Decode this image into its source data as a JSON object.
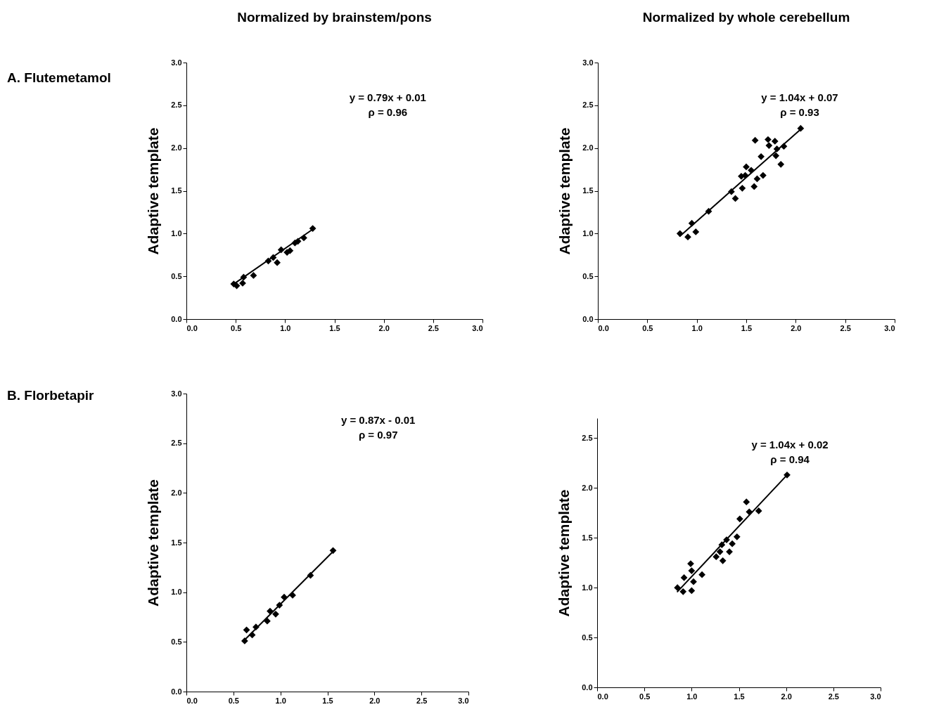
{
  "chart_data": [
    {
      "type": "scatter",
      "title": "Normalized by brainstem/pons",
      "subtitle": "A.  Flutemetamol",
      "ylabel": "Adaptive template",
      "annotations": [
        "y = 0.79x + 0.01",
        "ρ = 0.96"
      ],
      "xlim": [
        0,
        3
      ],
      "ylim": [
        0,
        3
      ],
      "xticks": [
        {
          "value": 0,
          "label": "0.0"
        },
        0.5,
        {
          "value": 1,
          "label": "1.0"
        },
        1.5,
        {
          "value": 2,
          "label": "2.0"
        },
        2.5,
        {
          "value": 3,
          "label": "3.0"
        }
      ],
      "yticks": [
        {
          "value": 0,
          "label": "0.0"
        },
        0.5,
        {
          "value": 1,
          "label": "1.0"
        },
        1.5,
        {
          "value": 2,
          "label": "2.0"
        },
        2.5,
        {
          "value": 3,
          "label": "3.0"
        }
      ],
      "series": [
        {
          "marker": "diamond",
          "color": "#000000",
          "x": [
            0.48,
            0.51,
            0.57,
            0.58,
            0.68,
            0.83,
            0.88,
            0.92,
            0.96,
            1.02,
            1.05,
            1.1,
            1.13,
            1.19,
            1.28
          ],
          "values": [
            0.41,
            0.39,
            0.42,
            0.49,
            0.51,
            0.68,
            0.72,
            0.66,
            0.81,
            0.78,
            0.8,
            0.89,
            0.91,
            0.95,
            1.06
          ]
        },
        {
          "type": "line",
          "color": "#000000",
          "line_style": "solid",
          "x": [
            0.48,
            1.28
          ],
          "values": [
            0.41,
            1.05
          ]
        }
      ]
    },
    {
      "type": "scatter",
      "title": "Normalized by whole cerebellum",
      "ylabel": "Adaptive template",
      "annotations": [
        "y = 1.04x + 0.07",
        "ρ = 0.93"
      ],
      "xlim": [
        0,
        3
      ],
      "ylim": [
        0,
        3
      ],
      "xticks": [
        {
          "value": 0,
          "label": "0.0"
        },
        0.5,
        {
          "value": 1,
          "label": "1.0"
        },
        1.5,
        {
          "value": 2,
          "label": "2.0"
        },
        2.5,
        {
          "value": 3,
          "label": "3.0"
        }
      ],
      "yticks": [
        {
          "value": 0,
          "label": "0.0"
        },
        0.5,
        {
          "value": 1,
          "label": "1.0"
        },
        1.5,
        {
          "value": 2,
          "label": "2.0"
        },
        2.5,
        {
          "value": 3,
          "label": "3.0"
        }
      ],
      "series": [
        {
          "marker": "diamond",
          "color": "#000000",
          "x": [
            0.83,
            0.91,
            0.99,
            0.95,
            1.12,
            1.35,
            1.39,
            1.46,
            1.5,
            1.45,
            1.49,
            1.55,
            1.58,
            1.61,
            1.67,
            1.65,
            1.59,
            1.72,
            1.73,
            1.79,
            1.8,
            1.81,
            1.85,
            1.88,
            2.05
          ],
          "values": [
            1.0,
            0.96,
            1.02,
            1.12,
            1.26,
            1.49,
            1.41,
            1.53,
            1.78,
            1.67,
            1.68,
            1.74,
            1.55,
            1.64,
            1.68,
            1.9,
            2.09,
            2.1,
            2.03,
            2.08,
            1.91,
            1.99,
            1.81,
            2.02,
            2.23
          ]
        },
        {
          "type": "line",
          "color": "#000000",
          "line_style": "solid",
          "x": [
            0.83,
            2.05
          ],
          "values": [
            0.97,
            2.22
          ]
        }
      ]
    },
    {
      "type": "scatter",
      "subtitle": "B.  Florbetapir",
      "ylabel": "Adaptive template",
      "annotations": [
        "y = 0.87x - 0.01",
        "ρ = 0.97"
      ],
      "xlim": [
        0,
        3
      ],
      "ylim": [
        0,
        3
      ],
      "xticks": [
        {
          "value": 0,
          "label": "0.0"
        },
        0.5,
        {
          "value": 1,
          "label": "1.0"
        },
        1.5,
        {
          "value": 2,
          "label": "2.0"
        },
        2.5,
        {
          "value": 3,
          "label": "3.0"
        }
      ],
      "yticks": [
        {
          "value": 0,
          "label": "0.0"
        },
        0.5,
        {
          "value": 1,
          "label": "1.0"
        },
        1.5,
        {
          "value": 2,
          "label": "2.0"
        },
        2.5,
        {
          "value": 3,
          "label": "3.0"
        }
      ],
      "series": [
        {
          "marker": "diamond",
          "color": "#000000",
          "x": [
            0.62,
            0.7,
            0.64,
            0.74,
            0.86,
            0.89,
            0.95,
            0.99,
            1.04,
            1.13,
            1.32,
            1.56
          ],
          "values": [
            0.51,
            0.57,
            0.62,
            0.65,
            0.71,
            0.81,
            0.78,
            0.87,
            0.95,
            0.97,
            1.17,
            1.42
          ]
        },
        {
          "type": "line",
          "color": "#000000",
          "line_style": "solid",
          "x": [
            0.62,
            1.56
          ],
          "values": [
            0.52,
            1.41
          ]
        }
      ]
    },
    {
      "type": "scatter",
      "ylabel": "Adaptive template",
      "annotations": [
        "y = 1.04x + 0.02",
        "ρ = 0.94"
      ],
      "xlim": [
        0,
        3
      ],
      "ylim": [
        0,
        2.7
      ],
      "xticks": [
        {
          "value": 0,
          "label": "0.0"
        },
        0.5,
        {
          "value": 1,
          "label": "1.0"
        },
        1.5,
        {
          "value": 2,
          "label": "2.0"
        },
        2.5,
        {
          "value": 3,
          "label": "3.0"
        }
      ],
      "yticks": [
        {
          "value": 0,
          "label": "0.0"
        },
        0.5,
        {
          "value": 1,
          "label": "1.0"
        },
        1.5,
        {
          "value": 2,
          "label": "2.0"
        },
        2.5
      ],
      "series": [
        {
          "marker": "diamond",
          "color": "#000000",
          "x": [
            0.85,
            0.91,
            0.92,
            1.0,
            1.02,
            1.0,
            0.99,
            1.11,
            1.26,
            1.33,
            1.3,
            1.32,
            1.37,
            1.4,
            1.43,
            1.48,
            1.51,
            1.58,
            1.61,
            1.71,
            2.01
          ],
          "values": [
            1.0,
            0.96,
            1.1,
            0.97,
            1.06,
            1.17,
            1.24,
            1.13,
            1.31,
            1.27,
            1.36,
            1.43,
            1.48,
            1.36,
            1.44,
            1.51,
            1.69,
            1.86,
            1.76,
            1.77,
            2.13
          ]
        },
        {
          "type": "line",
          "color": "#000000",
          "line_style": "solid",
          "x": [
            0.85,
            2.01
          ],
          "values": [
            0.96,
            2.13
          ]
        }
      ]
    }
  ]
}
